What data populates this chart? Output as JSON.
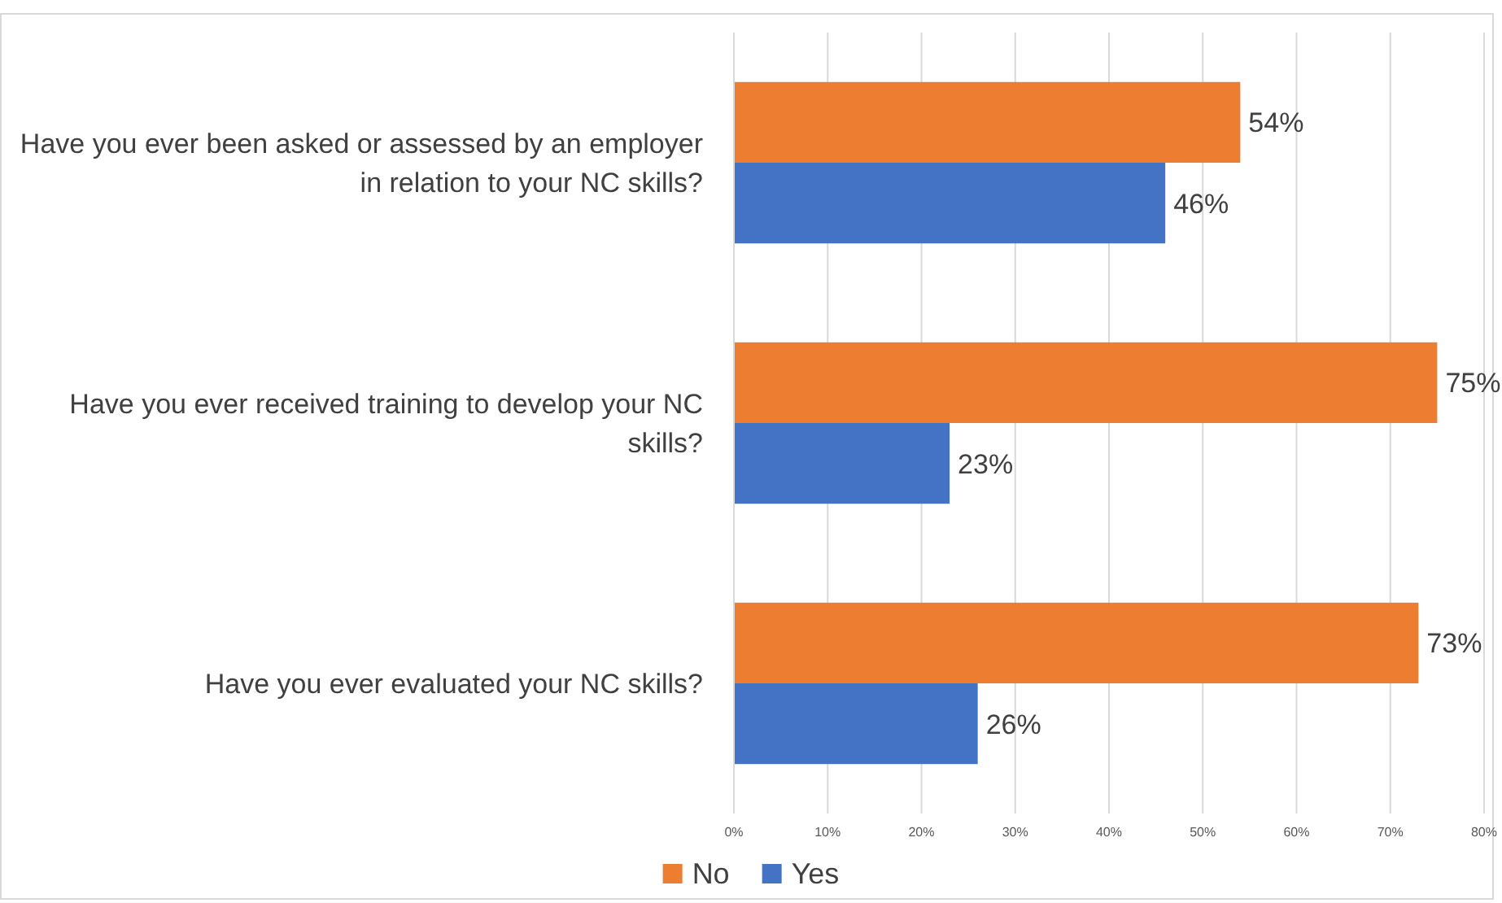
{
  "chart_data": {
    "type": "bar",
    "orientation": "horizontal",
    "categories": [
      "Have you ever been asked or assessed by an employer in relation to your NC skills?",
      "Have you ever received training to develop your NC skills?",
      "Have you ever evaluated your NC skills?"
    ],
    "series": [
      {
        "name": "No",
        "color": "#ed7d31",
        "values": [
          54,
          75,
          73
        ],
        "value_labels": [
          "54%",
          "75%",
          "73%"
        ]
      },
      {
        "name": "Yes",
        "color": "#4472c4",
        "values": [
          46,
          23,
          26
        ],
        "value_labels": [
          "46%",
          "23%",
          "26%"
        ]
      }
    ],
    "xlim": [
      0,
      80
    ],
    "xticks": [
      {
        "value": 0,
        "label": "0%"
      },
      {
        "value": 10,
        "label": "10%"
      },
      {
        "value": 20,
        "label": "20%"
      },
      {
        "value": 30,
        "label": "30%"
      },
      {
        "value": 40,
        "label": "40%"
      },
      {
        "value": 50,
        "label": "50%"
      },
      {
        "value": 60,
        "label": "60%"
      },
      {
        "value": 70,
        "label": "70%"
      },
      {
        "value": 80,
        "label": "80%"
      }
    ],
    "grid": "x",
    "legend": "bottom"
  }
}
